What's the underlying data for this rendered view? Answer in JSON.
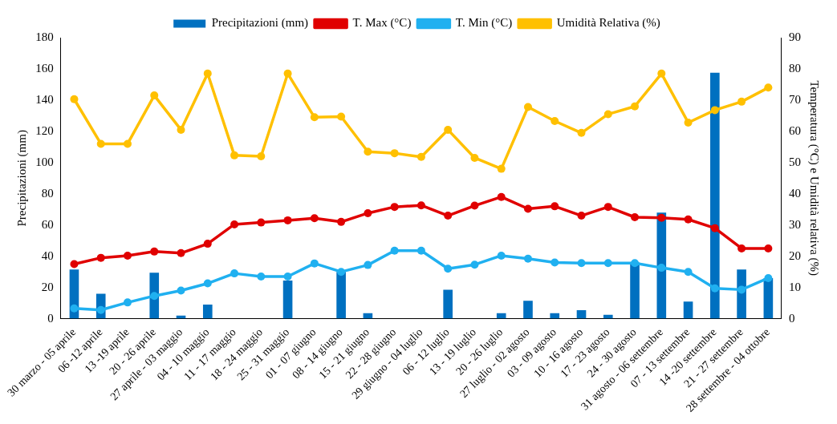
{
  "chart_data": {
    "type": "bar",
    "ylabel": "Precipitazioni (mm)",
    "y2label": "Temperatura (°C) e Umidità relativa (%)",
    "categories": [
      "30 marzo - 05 aprile",
      "06 -12 aprile",
      "13 -19 aprile",
      "20 - 26 aprile",
      "27 aprile - 03 maggio",
      "04 - 10 maggio",
      "11 - 17 maggio",
      "18 - 24 maggio",
      "25 - 31 maggio",
      "01 - 07 giugno",
      "08 - 14 giugno",
      "15 - 21 giugno",
      "22 - 28 giugno",
      "29 giugno - 04 luglio",
      "06 - 12 luglio",
      "13 - 19 luglio",
      "20 - 26 luglio",
      "27 luglio - 02 agosto",
      "03 - 09 agosto",
      "10 - 16 agosto",
      "17 - 23 agosto",
      "24 - 30 agosto",
      "31 agosto - 06 settembre",
      "07 - 13 settembre",
      "14 -20 settembre",
      "21 - 27 settembre",
      "28 settembre - 04 ottobre"
    ],
    "series": [
      {
        "name": "Precipitazioni (mm)",
        "color": "#0070c0",
        "values": [
          31.5,
          16,
          0,
          29.5,
          2,
          9,
          0,
          0,
          24.5,
          0,
          30,
          3.5,
          0,
          0,
          18.5,
          0,
          3.5,
          11.5,
          3.5,
          5.5,
          2.5,
          36,
          68,
          11,
          157.5,
          31.5,
          26
        ]
      },
      {
        "name": "T. Max (°C)",
        "type": "line",
        "axis": "y2",
        "color": "#e00000",
        "values": [
          17.5,
          19.5,
          20.2,
          21.5,
          21,
          24,
          30.2,
          30.8,
          31.5,
          32.2,
          31,
          33.8,
          35.8,
          36.3,
          33,
          36.2,
          39,
          35.2,
          36,
          33,
          35.8,
          32.5,
          32.3,
          31.8,
          29,
          22.5,
          22.5
        ]
      },
      {
        "name": "T. Min (°C)",
        "type": "line",
        "axis": "y2",
        "color": "#20b0f0",
        "values": [
          3.3,
          2.8,
          5.2,
          7.3,
          9,
          11.3,
          14.5,
          13.5,
          13.5,
          17.7,
          15,
          17.2,
          21.8,
          21.8,
          16,
          17.3,
          20.2,
          19.2,
          18,
          17.8,
          17.8,
          17.8,
          16.3,
          15,
          9.7,
          9.3,
          13
        ]
      },
      {
        "name": "Umidità Relativa (%)",
        "type": "line",
        "axis": "y2",
        "color": "#ffc000",
        "values": [
          70.3,
          56,
          56,
          71.5,
          60.5,
          78.5,
          52.3,
          52,
          78.5,
          64.5,
          64.7,
          53.5,
          53,
          51.8,
          60.5,
          51.5,
          48,
          67.8,
          63.3,
          59.5,
          65.5,
          68,
          78.5,
          62.8,
          66.8,
          69.5,
          74
        ]
      }
    ],
    "ylim": [
      0,
      180
    ],
    "yticks": [
      0,
      20,
      40,
      60,
      80,
      100,
      120,
      140,
      160,
      180
    ],
    "y2lim": [
      0,
      90
    ],
    "y2ticks": [
      0,
      10,
      20,
      30,
      40,
      50,
      60,
      70,
      80,
      90
    ],
    "grid": false,
    "legend": "top",
    "marker": "circle",
    "line_style": "solid"
  }
}
